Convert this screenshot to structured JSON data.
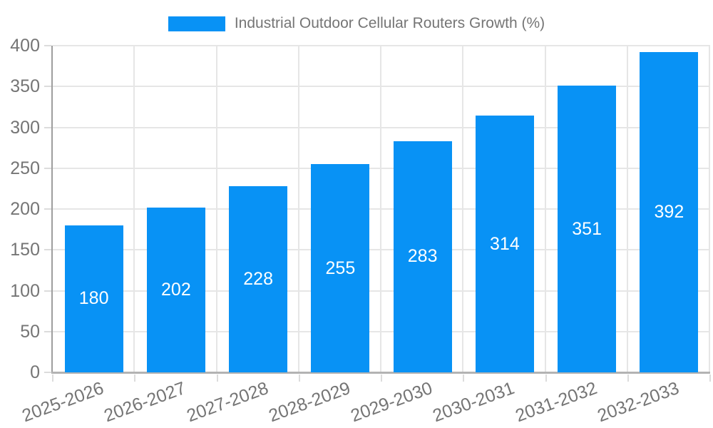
{
  "chart_data": {
    "type": "bar",
    "title": "Industrial Outdoor Cellular Routers Growth (%)",
    "series_name": "Industrial Outdoor Cellular Routers Growth (%)",
    "categories": [
      "2025-2026",
      "2026-2027",
      "2027-2028",
      "2028-2029",
      "2029-2030",
      "2030-2031",
      "2031-2032",
      "2032-2033"
    ],
    "values": [
      180,
      202,
      228,
      255,
      283,
      314,
      351,
      392
    ],
    "yticks": [
      0,
      50,
      100,
      150,
      200,
      250,
      300,
      350,
      400
    ],
    "ylim": [
      0,
      400
    ],
    "xlabel": "",
    "ylabel": "",
    "grid": true,
    "legend_position": "top-center",
    "bar_label_position": "center",
    "x_label_rotation_deg": -20
  },
  "colors": {
    "bar": "#0892f5",
    "bar_label": "#ffffff",
    "axis_text": "#757575",
    "grid_line": "#e6e6e6",
    "tick": "#dcdcdc",
    "y_axis_line": "#9e9e9e",
    "x_axis_line": "#b3b3b3",
    "background": "#ffffff"
  }
}
